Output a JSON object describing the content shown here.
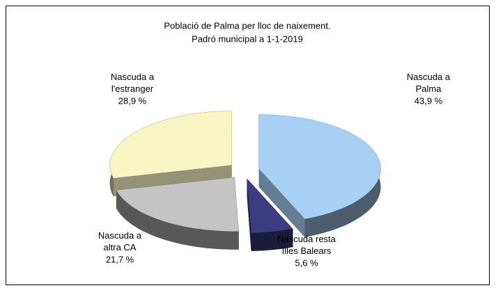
{
  "chart_data": {
    "type": "pie",
    "title": "Població de Palma per lloc de naixement.",
    "subtitle": "Padró municipal a 1-1-2019",
    "categories": [
      "Nascuda a Palma",
      "Nascuda resta Illes Balears",
      "Nascuda a altra CA",
      "Nascuda a l'estranger"
    ],
    "values": [
      43.9,
      5.6,
      21.7,
      28.9
    ],
    "value_labels": [
      "43,9 %",
      "5,6 %",
      "21,7 %",
      "28,9 %"
    ],
    "colors": [
      "#a8d0f5",
      "#3c3c80",
      "#c4c4c4",
      "#f7f5c4"
    ]
  }
}
